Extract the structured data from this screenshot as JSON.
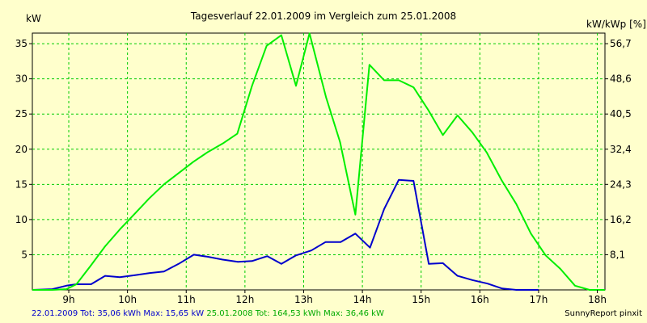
{
  "chart_data": {
    "type": "line",
    "title": "Tagesverlauf 22.01.2009 im Vergleich zum 25.01.2008",
    "ylabel_left": "kW",
    "ylabel_right": "kW/kWp [%]",
    "x_range": [
      8.38,
      18.13
    ],
    "ylim": [
      0,
      36.5
    ],
    "x_ticks": [
      {
        "v": 9,
        "label": "9h"
      },
      {
        "v": 10,
        "label": "10h"
      },
      {
        "v": 11,
        "label": "11h"
      },
      {
        "v": 12,
        "label": "12h"
      },
      {
        "v": 13,
        "label": "13h"
      },
      {
        "v": 14,
        "label": "14h"
      },
      {
        "v": 15,
        "label": "15h"
      },
      {
        "v": 16,
        "label": "16h"
      },
      {
        "v": 17,
        "label": "17h"
      },
      {
        "v": 18,
        "label": "18h"
      }
    ],
    "y_ticks_left": [
      {
        "v": 5,
        "label": "5"
      },
      {
        "v": 10,
        "label": "10"
      },
      {
        "v": 15,
        "label": "15"
      },
      {
        "v": 20,
        "label": "20"
      },
      {
        "v": 25,
        "label": "25"
      },
      {
        "v": 30,
        "label": "30"
      },
      {
        "v": 35,
        "label": "35"
      }
    ],
    "y_ticks_right": [
      {
        "v": 5,
        "label": "8,1"
      },
      {
        "v": 10,
        "label": "16,2"
      },
      {
        "v": 15,
        "label": "24,3"
      },
      {
        "v": 20,
        "label": "32,4"
      },
      {
        "v": 25,
        "label": "40,5"
      },
      {
        "v": 30,
        "label": "48,6"
      },
      {
        "v": 35,
        "label": "56,7"
      }
    ],
    "grid": true,
    "series": [
      {
        "name": "22.01.2009",
        "color": "#0000cc",
        "x": [
          8.38,
          8.72,
          8.96,
          9.13,
          9.38,
          9.62,
          9.87,
          10.13,
          10.38,
          10.62,
          10.87,
          11.13,
          11.38,
          11.62,
          11.88,
          12.12,
          12.38,
          12.62,
          12.87,
          13.13,
          13.37,
          13.63,
          13.88,
          14.13,
          14.37,
          14.62,
          14.87,
          15.13,
          15.37,
          15.62,
          15.87,
          16.13,
          16.38,
          16.62,
          16.87,
          17.0
        ],
        "y": [
          0.0,
          0.1,
          0.6,
          0.8,
          0.8,
          2.0,
          1.8,
          2.1,
          2.4,
          2.6,
          3.7,
          5.0,
          4.7,
          4.3,
          4.0,
          4.1,
          4.8,
          3.7,
          4.9,
          5.6,
          6.8,
          6.8,
          8.0,
          6.0,
          11.5,
          15.65,
          15.5,
          3.7,
          3.8,
          2.0,
          1.4,
          0.9,
          0.2,
          0.0,
          0.0,
          0.0
        ]
      },
      {
        "name": "25.01.2008",
        "color": "#00ee00",
        "x": [
          8.38,
          8.72,
          8.96,
          9.13,
          9.37,
          9.62,
          9.87,
          10.12,
          10.37,
          10.62,
          10.87,
          11.12,
          11.37,
          11.62,
          11.87,
          12.12,
          12.37,
          12.62,
          12.87,
          13.1,
          13.38,
          13.62,
          13.88,
          14.12,
          14.37,
          14.62,
          14.87,
          15.12,
          15.37,
          15.62,
          15.87,
          16.12,
          16.37,
          16.62,
          16.87,
          17.12,
          17.37,
          17.62,
          17.87,
          18.13
        ],
        "y": [
          0.0,
          0.0,
          0.1,
          0.8,
          3.4,
          6.2,
          8.6,
          10.8,
          13.0,
          15.0,
          16.6,
          18.2,
          19.6,
          20.8,
          22.2,
          29.0,
          34.7,
          36.2,
          29.0,
          36.46,
          27.4,
          21.0,
          10.7,
          32.0,
          29.8,
          29.8,
          28.8,
          25.6,
          22.0,
          24.8,
          22.4,
          19.5,
          15.6,
          12.2,
          8.0,
          4.9,
          3.0,
          0.6,
          0.0,
          0.0
        ]
      }
    ],
    "legend": [
      {
        "color": "#0000cc",
        "text": "22.01.2009 Tot: 35,06 kWh Max: 15,65 kW"
      },
      {
        "color": "#00ee00",
        "text": "25.01.2008 Tot: 164,53 kWh Max: 36,46 kW"
      }
    ],
    "credit": "SunnyReport pinxit"
  }
}
